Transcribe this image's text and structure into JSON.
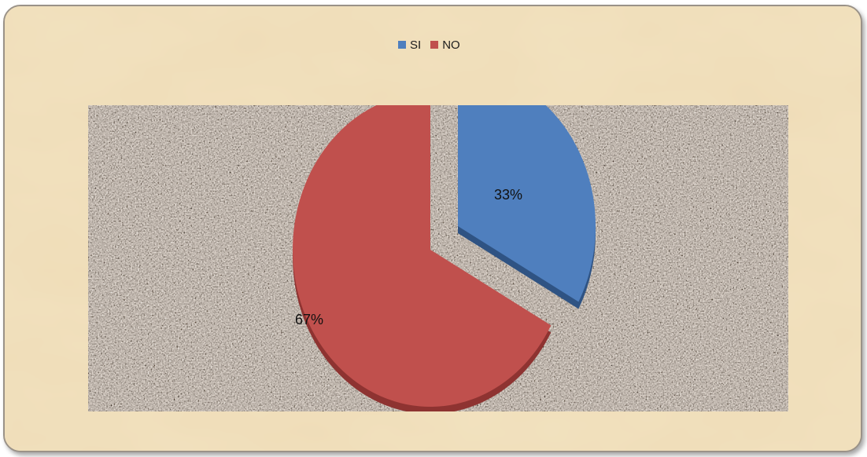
{
  "colors": {
    "si": "#4f7fbe",
    "no": "#c0504d",
    "plot_area": "#8a7e76",
    "background": "#f0dfb9"
  },
  "chart_data": {
    "type": "pie",
    "style": "3d-exploded",
    "legend_position": "top-center",
    "title": "",
    "categories": [
      "SI",
      "NO"
    ],
    "values": [
      33,
      67
    ],
    "data_labels": [
      "33%",
      "67%"
    ]
  },
  "legend": {
    "si_label": "SI",
    "no_label": "NO"
  }
}
